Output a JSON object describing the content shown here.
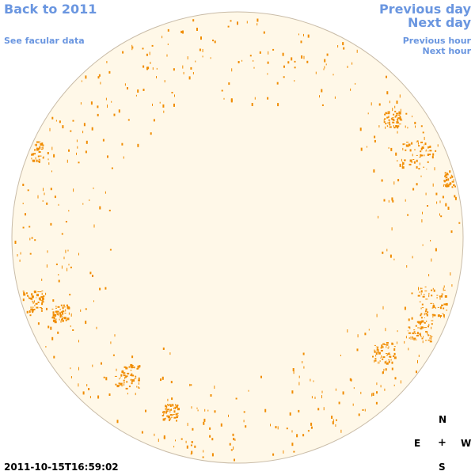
{
  "nav": {
    "back_year": "Back to 2011",
    "facular": "See facular data",
    "previous_day": "Previous day",
    "next_day": "Next day",
    "previous_hour": "Previous hour",
    "next_hour": "Next hour"
  },
  "compass": {
    "north": "N",
    "east": "E",
    "center": "+",
    "west": "W",
    "south": "S"
  },
  "timestamp": "2011-10-15T16:59:02",
  "colors": {
    "disk_fill": "#fff8e8",
    "disk_border": "#c9bca8",
    "plage": "#f08c00",
    "link": "#6a96e0"
  }
}
